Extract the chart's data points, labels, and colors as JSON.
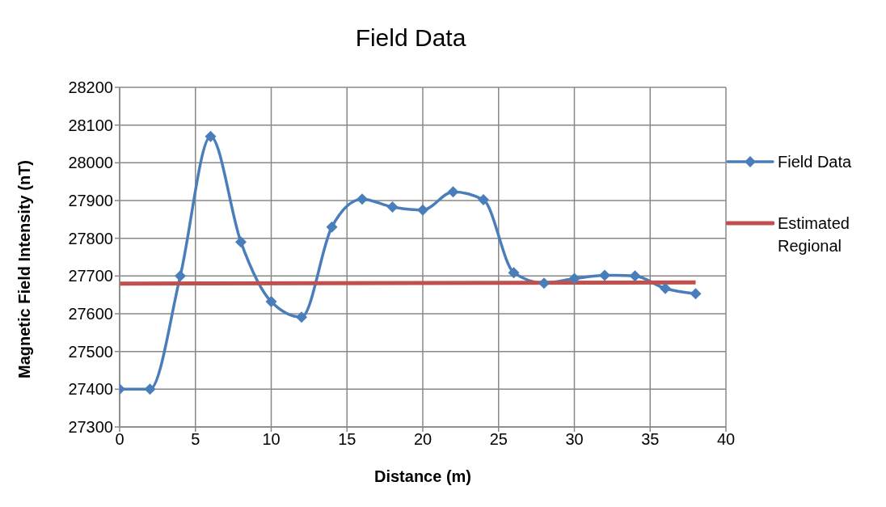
{
  "chart_data": {
    "type": "line",
    "title": "Field Data",
    "xlabel": "Distance (m)",
    "ylabel": "Magnetic Field Intensity (nT)",
    "x": [
      0,
      2,
      4,
      6,
      8,
      10,
      12,
      14,
      16,
      18,
      20,
      22,
      24,
      26,
      28,
      30,
      32,
      34,
      36,
      38
    ],
    "series": [
      {
        "name": "Field Data",
        "color": "#4a7ebb",
        "marker": "diamond",
        "values": [
          27400,
          27400,
          27700,
          28070,
          27790,
          27632,
          27591,
          27830,
          27904,
          27883,
          27875,
          27923,
          27902,
          27709,
          27681,
          27693,
          27702,
          27700,
          27667,
          27653
        ]
      },
      {
        "name": "Estimated Regional",
        "color": "#c0504d",
        "marker": "none",
        "x": [
          0,
          38
        ],
        "values": [
          27680,
          27683
        ]
      }
    ],
    "xlim": [
      0,
      40
    ],
    "xticks": [
      0,
      5,
      10,
      15,
      20,
      25,
      30,
      35,
      40
    ],
    "ylim": [
      27300,
      28200
    ],
    "yticks": [
      27300,
      27400,
      27500,
      27600,
      27700,
      27800,
      27900,
      28000,
      28100,
      28200
    ],
    "grid": true,
    "legend": "right",
    "line_style": "solid"
  }
}
